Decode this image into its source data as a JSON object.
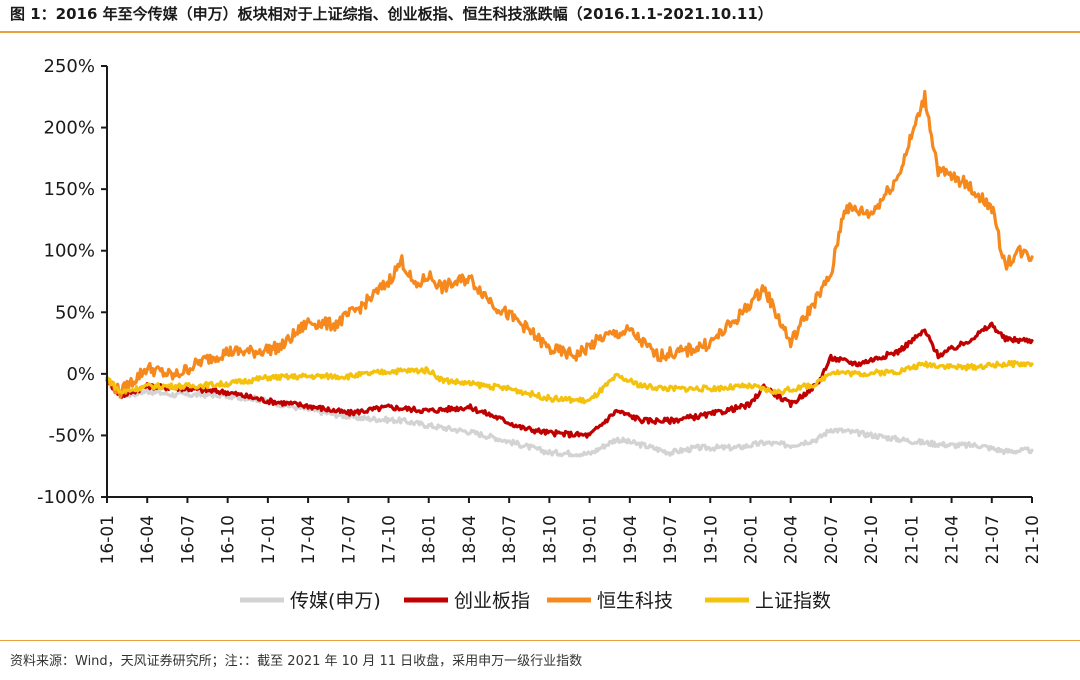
{
  "figure": {
    "title": "图 1：2016 年至今传媒（申万）板块相对于上证综指、创业板指、恒生科技涨跌幅（2016.1.1-2021.10.11）",
    "source": "资料来源：Wind，天风证券研究所；注：：截至 2021 年 10 月 11 日收盘，采用申万一级行业指数"
  },
  "colors": {
    "accent_rule": "#e8a13c",
    "axis": "#1a1a1a"
  },
  "chart_data": {
    "type": "line",
    "x_tick_labels": [
      "16-01",
      "16-04",
      "16-07",
      "16-10",
      "17-01",
      "17-04",
      "17-07",
      "17-10",
      "18-01",
      "18-04",
      "18-07",
      "18-10",
      "19-01",
      "19-04",
      "19-07",
      "19-10",
      "20-01",
      "20-04",
      "20-07",
      "20-10",
      "21-01",
      "21-04",
      "21-07",
      "21-10"
    ],
    "y_tick_labels": [
      "250%",
      "200%",
      "150%",
      "100%",
      "50%",
      "0%",
      "-50%",
      "-100%"
    ],
    "ylim": [
      -100,
      250
    ],
    "y_unit": "%",
    "legend_position": "bottom",
    "grid": false,
    "series": [
      {
        "name": "传媒(申万)",
        "color": "#d3d3d3",
        "points": [
          [
            "16-01",
            -5
          ],
          [
            "16-02",
            -18
          ],
          [
            "16-04",
            -14
          ],
          [
            "16-06",
            -17
          ],
          [
            "16-09",
            -17
          ],
          [
            "16-12",
            -20
          ],
          [
            "17-03",
            -27
          ],
          [
            "17-06",
            -33
          ],
          [
            "17-08",
            -36
          ],
          [
            "17-11",
            -38
          ],
          [
            "18-01",
            -42
          ],
          [
            "18-04",
            -47
          ],
          [
            "18-06",
            -52
          ],
          [
            "18-08",
            -58
          ],
          [
            "18-10",
            -64
          ],
          [
            "19-01",
            -65
          ],
          [
            "19-03",
            -53
          ],
          [
            "19-05",
            -58
          ],
          [
            "19-07",
            -64
          ],
          [
            "19-09",
            -60
          ],
          [
            "19-12",
            -60
          ],
          [
            "20-02",
            -56
          ],
          [
            "20-04",
            -58
          ],
          [
            "20-06",
            -53
          ],
          [
            "20-07",
            -45
          ],
          [
            "20-09",
            -48
          ],
          [
            "20-12",
            -53
          ],
          [
            "21-02",
            -56
          ],
          [
            "21-04",
            -58
          ],
          [
            "21-06",
            -58
          ],
          [
            "21-08",
            -63
          ],
          [
            "21-10",
            -62
          ]
        ]
      },
      {
        "name": "创业板指",
        "color": "#c00000",
        "points": [
          [
            "16-01",
            -5
          ],
          [
            "16-02",
            -18
          ],
          [
            "16-04",
            -10
          ],
          [
            "16-07",
            -12
          ],
          [
            "16-10",
            -15
          ],
          [
            "17-01",
            -22
          ],
          [
            "17-04",
            -26
          ],
          [
            "17-07",
            -32
          ],
          [
            "17-10",
            -27
          ],
          [
            "18-01",
            -30
          ],
          [
            "18-04",
            -27
          ],
          [
            "18-06",
            -35
          ],
          [
            "18-08",
            -44
          ],
          [
            "18-10",
            -48
          ],
          [
            "19-01",
            -50
          ],
          [
            "19-03",
            -30
          ],
          [
            "19-05",
            -38
          ],
          [
            "19-07",
            -38
          ],
          [
            "19-10",
            -33
          ],
          [
            "20-01",
            -25
          ],
          [
            "20-02",
            -10
          ],
          [
            "20-04",
            -25
          ],
          [
            "20-06",
            -8
          ],
          [
            "20-07",
            13
          ],
          [
            "20-09",
            8
          ],
          [
            "20-12",
            18
          ],
          [
            "21-02",
            35
          ],
          [
            "21-03",
            15
          ],
          [
            "21-05",
            25
          ],
          [
            "21-07",
            40
          ],
          [
            "21-08",
            28
          ],
          [
            "21-10",
            27
          ]
        ]
      },
      {
        "name": "恒生科技",
        "color": "#f5891d",
        "points": [
          [
            "16-01",
            -5
          ],
          [
            "16-02",
            -15
          ],
          [
            "16-04",
            5
          ],
          [
            "16-06",
            -2
          ],
          [
            "16-08",
            10
          ],
          [
            "16-10",
            18
          ],
          [
            "16-12",
            18
          ],
          [
            "17-02",
            22
          ],
          [
            "17-04",
            42
          ],
          [
            "17-06",
            40
          ],
          [
            "17-08",
            55
          ],
          [
            "17-10",
            75
          ],
          [
            "17-11",
            92
          ],
          [
            "17-12",
            70
          ],
          [
            "18-01",
            80
          ],
          [
            "18-02",
            70
          ],
          [
            "18-04",
            78
          ],
          [
            "18-06",
            55
          ],
          [
            "18-08",
            40
          ],
          [
            "18-10",
            20
          ],
          [
            "18-12",
            15
          ],
          [
            "19-02",
            30
          ],
          [
            "19-04",
            35
          ],
          [
            "19-06",
            15
          ],
          [
            "19-08",
            18
          ],
          [
            "19-10",
            25
          ],
          [
            "19-12",
            45
          ],
          [
            "20-02",
            70
          ],
          [
            "20-04",
            25
          ],
          [
            "20-05",
            45
          ],
          [
            "20-07",
            80
          ],
          [
            "20-08",
            135
          ],
          [
            "20-10",
            130
          ],
          [
            "20-12",
            160
          ],
          [
            "21-02",
            225
          ],
          [
            "21-03",
            165
          ],
          [
            "21-05",
            155
          ],
          [
            "21-07",
            135
          ],
          [
            "21-08",
            88
          ],
          [
            "21-09",
            100
          ],
          [
            "21-10",
            95
          ]
        ]
      },
      {
        "name": "上证指数",
        "color": "#f4c20d",
        "points": [
          [
            "16-01",
            -3
          ],
          [
            "16-02",
            -15
          ],
          [
            "16-04",
            -10
          ],
          [
            "16-07",
            -10
          ],
          [
            "16-10",
            -8
          ],
          [
            "17-01",
            -3
          ],
          [
            "17-04",
            -2
          ],
          [
            "17-07",
            -2
          ],
          [
            "17-10",
            2
          ],
          [
            "18-01",
            3
          ],
          [
            "18-02",
            -5
          ],
          [
            "18-04",
            -8
          ],
          [
            "18-07",
            -12
          ],
          [
            "18-10",
            -20
          ],
          [
            "19-01",
            -22
          ],
          [
            "19-03",
            -2
          ],
          [
            "19-05",
            -10
          ],
          [
            "19-07",
            -12
          ],
          [
            "19-10",
            -12
          ],
          [
            "20-01",
            -10
          ],
          [
            "20-03",
            -15
          ],
          [
            "20-06",
            -8
          ],
          [
            "20-07",
            2
          ],
          [
            "20-09",
            0
          ],
          [
            "20-12",
            2
          ],
          [
            "21-02",
            8
          ],
          [
            "21-05",
            5
          ],
          [
            "21-08",
            8
          ],
          [
            "21-10",
            8
          ]
        ]
      }
    ]
  }
}
